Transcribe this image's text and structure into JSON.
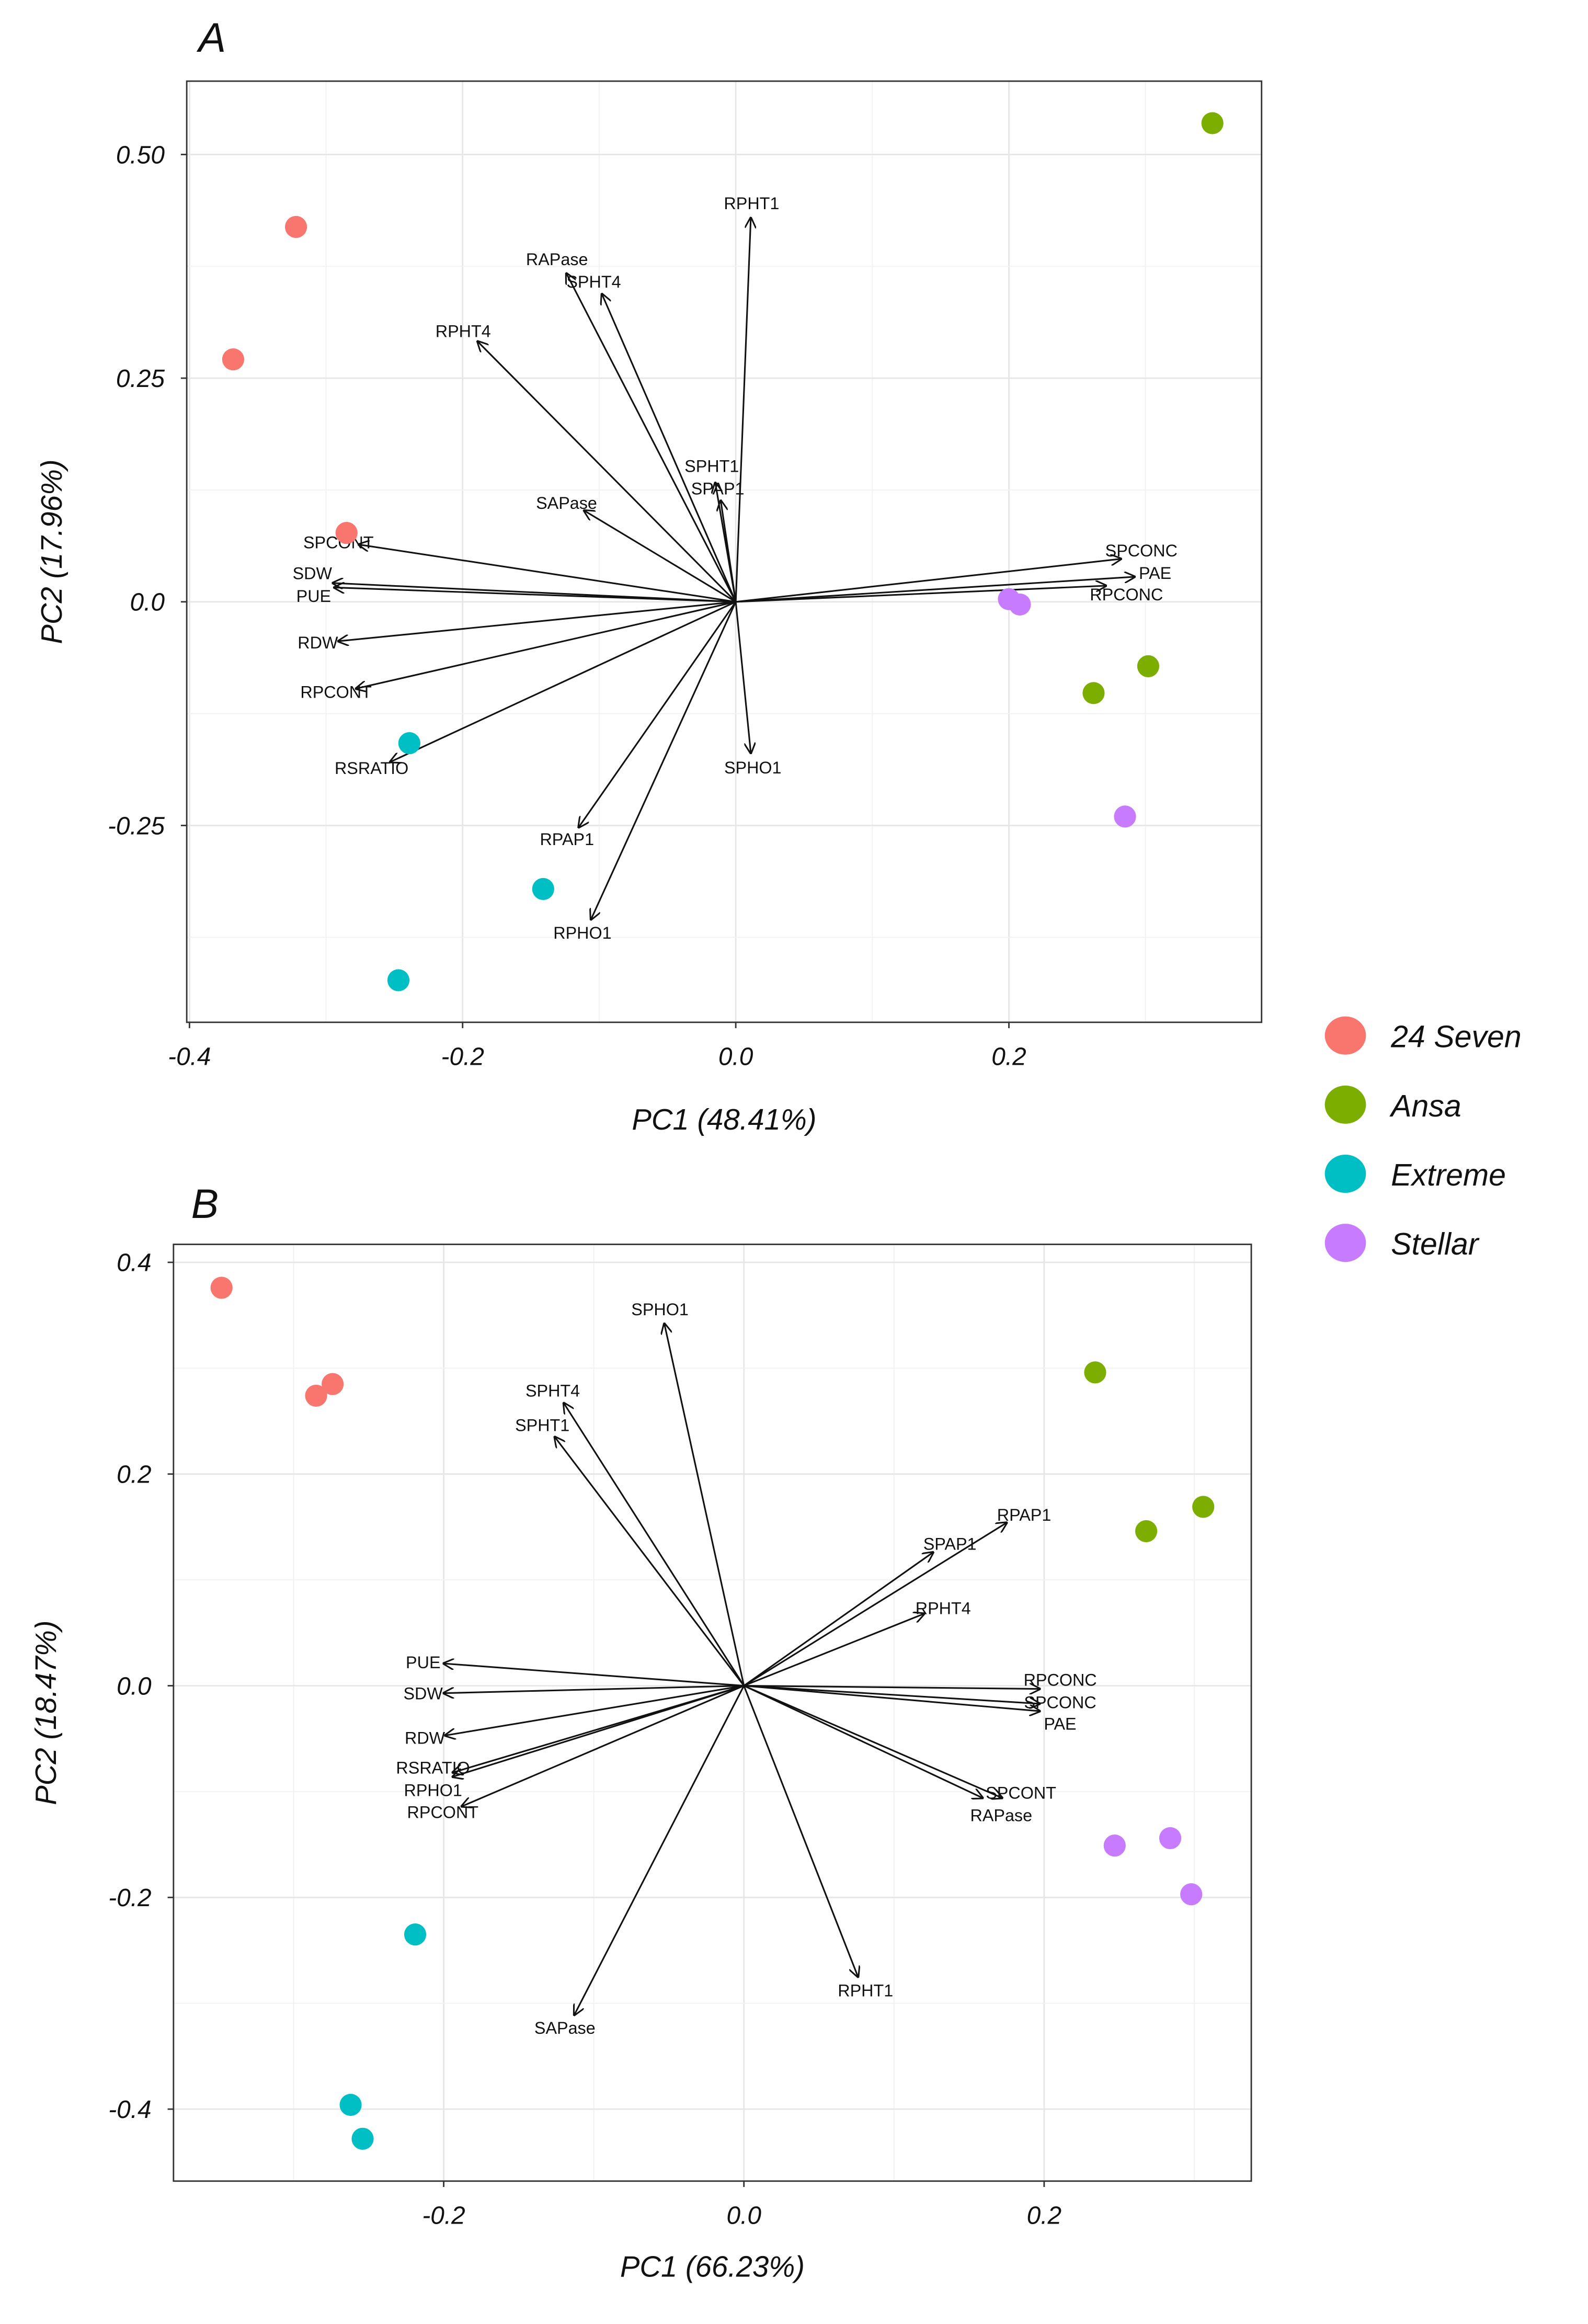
{
  "legend": {
    "items": [
      {
        "label": "24 Seven",
        "color": "#F8766D"
      },
      {
        "label": "Ansa",
        "color": "#7CAE00"
      },
      {
        "label": "Extreme",
        "color": "#00BFC4"
      },
      {
        "label": "Stellar",
        "color": "#C77CFF"
      }
    ]
  },
  "chart_data": [
    {
      "type": "scatter",
      "subtype": "pca-biplot",
      "panel_label": "A",
      "xlabel": "PC1 (48.41%)",
      "ylabel": "PC2 (17.96%)",
      "xlim": [
        -0.402,
        0.385
      ],
      "ylim": [
        -0.47,
        0.582
      ],
      "xticks": [
        {
          "v": -0.4,
          "label": "-0.4"
        },
        {
          "v": -0.2,
          "label": "-0.2"
        },
        {
          "v": 0.0,
          "label": "0.0"
        },
        {
          "v": 0.2,
          "label": "0.2"
        }
      ],
      "yticks": [
        {
          "v": 0.5,
          "label": "0.50"
        },
        {
          "v": 0.25,
          "label": "0.25"
        },
        {
          "v": 0.0,
          "label": "0.0"
        },
        {
          "v": -0.25,
          "label": "-0.25"
        }
      ],
      "grid": true,
      "series": [
        {
          "name": "24 Seven",
          "points": [
            [
              -0.322,
              0.419
            ],
            [
              -0.368,
              0.271
            ],
            [
              -0.285,
              0.077
            ]
          ]
        },
        {
          "name": "Ansa",
          "points": [
            [
              0.349,
              0.535
            ],
            [
              0.302,
              -0.072
            ],
            [
              0.262,
              -0.102
            ]
          ]
        },
        {
          "name": "Extreme",
          "points": [
            [
              -0.239,
              -0.158
            ],
            [
              -0.141,
              -0.321
            ],
            [
              -0.247,
              -0.423
            ]
          ]
        },
        {
          "name": "Stellar",
          "points": [
            [
              0.2,
              0.003
            ],
            [
              0.208,
              -0.003
            ],
            [
              0.285,
              -0.24
            ]
          ]
        }
      ],
      "loadings": [
        {
          "name": "RPHT1",
          "x": 0.011,
          "y": 0.429
        },
        {
          "name": "RAPase",
          "x": -0.124,
          "y": 0.367
        },
        {
          "name": "SPHT4",
          "x": -0.098,
          "y": 0.344
        },
        {
          "name": "RPHT4",
          "x": -0.189,
          "y": 0.291
        },
        {
          "name": "SPHT1",
          "x": -0.015,
          "y": 0.133
        },
        {
          "name": "SPAP1",
          "x": -0.011,
          "y": 0.113
        },
        {
          "name": "SAPase",
          "x": -0.111,
          "y": 0.102
        },
        {
          "name": "SPCONT",
          "x": -0.276,
          "y": 0.064
        },
        {
          "name": "SDW",
          "x": -0.295,
          "y": 0.021
        },
        {
          "name": "PUE",
          "x": -0.294,
          "y": 0.016
        },
        {
          "name": "RDW",
          "x": -0.291,
          "y": -0.044
        },
        {
          "name": "RPCONT",
          "x": -0.278,
          "y": -0.097
        },
        {
          "name": "RSRATIO",
          "x": -0.253,
          "y": -0.179
        },
        {
          "name": "RPAP1",
          "x": -0.115,
          "y": -0.252
        },
        {
          "name": "RPHO1",
          "x": -0.106,
          "y": -0.355
        },
        {
          "name": "SPHO1",
          "x": 0.011,
          "y": -0.169
        },
        {
          "name": "SPCONC",
          "x": 0.282,
          "y": 0.048
        },
        {
          "name": "PAE",
          "x": 0.292,
          "y": 0.028
        },
        {
          "name": "RPCONC",
          "x": 0.271,
          "y": 0.018
        }
      ]
    },
    {
      "type": "scatter",
      "subtype": "pca-biplot",
      "panel_label": "B",
      "xlabel": "PC1 (66.23%)",
      "ylabel": "PC2 (18.47%)",
      "xlim": [
        -0.38,
        0.338
      ],
      "ylim": [
        -0.468,
        0.417
      ],
      "xticks": [
        {
          "v": -0.2,
          "label": "-0.2"
        },
        {
          "v": 0.0,
          "label": "0.0"
        },
        {
          "v": 0.2,
          "label": "0.2"
        }
      ],
      "yticks": [
        {
          "v": 0.4,
          "label": "0.4"
        },
        {
          "v": 0.2,
          "label": "0.2"
        },
        {
          "v": 0.0,
          "label": "0.0"
        },
        {
          "v": -0.2,
          "label": "-0.2"
        },
        {
          "v": -0.4,
          "label": "-0.4"
        }
      ],
      "grid": true,
      "series": [
        {
          "name": "24 Seven",
          "points": [
            [
              -0.348,
              0.376
            ],
            [
              -0.285,
              0.274
            ],
            [
              -0.274,
              0.285
            ]
          ]
        },
        {
          "name": "Ansa",
          "points": [
            [
              0.234,
              0.296
            ],
            [
              0.306,
              0.169
            ],
            [
              0.268,
              0.146
            ]
          ]
        },
        {
          "name": "Extreme",
          "points": [
            [
              -0.219,
              -0.235
            ],
            [
              -0.262,
              -0.396
            ],
            [
              -0.254,
              -0.428
            ]
          ]
        },
        {
          "name": "Stellar",
          "points": [
            [
              0.247,
              -0.151
            ],
            [
              0.284,
              -0.144
            ],
            [
              0.298,
              -0.197
            ]
          ]
        }
      ],
      "loadings": [
        {
          "name": "SPHO1",
          "x": -0.053,
          "y": 0.342
        },
        {
          "name": "SPHT4",
          "x": -0.12,
          "y": 0.267
        },
        {
          "name": "SPHT1",
          "x": -0.126,
          "y": 0.235
        },
        {
          "name": "RPAP1",
          "x": 0.175,
          "y": 0.154
        },
        {
          "name": "SPAP1",
          "x": 0.126,
          "y": 0.126
        },
        {
          "name": "RPHT4",
          "x": 0.12,
          "y": 0.068
        },
        {
          "name": "RPCONC",
          "x": 0.197,
          "y": -0.003
        },
        {
          "name": "SPCONC",
          "x": 0.197,
          "y": -0.017
        },
        {
          "name": "PAE",
          "x": 0.197,
          "y": -0.024
        },
        {
          "name": "SPCONT",
          "x": 0.172,
          "y": -0.106
        },
        {
          "name": "RAPase",
          "x": 0.159,
          "y": -0.106
        },
        {
          "name": "RPHT1",
          "x": 0.076,
          "y": -0.275
        },
        {
          "name": "SAPase",
          "x": -0.113,
          "y": -0.311
        },
        {
          "name": "PUE",
          "x": -0.2,
          "y": 0.021
        },
        {
          "name": "SDW",
          "x": -0.2,
          "y": -0.007
        },
        {
          "name": "RDW",
          "x": -0.199,
          "y": -0.047
        },
        {
          "name": "RPHO1",
          "x": -0.194,
          "y": -0.086
        },
        {
          "name": "RSRATIO",
          "x": -0.194,
          "y": -0.082
        },
        {
          "name": "RPCONT",
          "x": -0.188,
          "y": -0.114
        }
      ]
    }
  ]
}
